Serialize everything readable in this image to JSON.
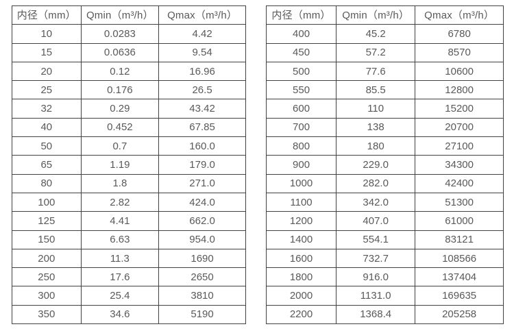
{
  "colors": {
    "background": "#ffffff",
    "table_border": "#404040",
    "table_text": "#595959"
  },
  "tables": [
    {
      "name": "small-diameter-flow-table",
      "headers": [
        "内径（mm）",
        "Qmin（m³/h）",
        "Qmax（m³/h）"
      ],
      "rows": [
        [
          "10",
          "0.0283",
          "4.42"
        ],
        [
          "15",
          "0.0636",
          "9.54"
        ],
        [
          "20",
          "0.12",
          "16.96"
        ],
        [
          "25",
          "0.176",
          "26.5"
        ],
        [
          "32",
          "0.29",
          "43.42"
        ],
        [
          "40",
          "0.452",
          "67.85"
        ],
        [
          "50",
          "0.7",
          "160.0"
        ],
        [
          "65",
          "1.19",
          "179.0"
        ],
        [
          "80",
          "1.8",
          "271.0"
        ],
        [
          "100",
          "2.82",
          "424.0"
        ],
        [
          "125",
          "4.41",
          "662.0"
        ],
        [
          "150",
          "6.63",
          "954.0"
        ],
        [
          "200",
          "11.3",
          "1690"
        ],
        [
          "250",
          "17.6",
          "2650"
        ],
        [
          "300",
          "25.4",
          "3810"
        ],
        [
          "350",
          "34.6",
          "5190"
        ]
      ]
    },
    {
      "name": "large-diameter-flow-table",
      "headers": [
        "内径（mm）",
        "Qmin（m³/h）",
        "Qmax（m³/h）"
      ],
      "rows": [
        [
          "400",
          "45.2",
          "6780"
        ],
        [
          "450",
          "57.2",
          "8570"
        ],
        [
          "500",
          "77.6",
          "10600"
        ],
        [
          "550",
          "85.5",
          "12800"
        ],
        [
          "600",
          "110",
          "15200"
        ],
        [
          "700",
          "138",
          "20700"
        ],
        [
          "800",
          "180",
          "27100"
        ],
        [
          "900",
          "229.0",
          "34300"
        ],
        [
          "1000",
          "282.0",
          "42400"
        ],
        [
          "1100",
          "342.0",
          "51300"
        ],
        [
          "1200",
          "407.0",
          "61000"
        ],
        [
          "1400",
          "554.1",
          "83121"
        ],
        [
          "1600",
          "732.7",
          "108566"
        ],
        [
          "1800",
          "916.0",
          "137404"
        ],
        [
          "2000",
          "1131.0",
          "169635"
        ],
        [
          "2200",
          "1368.4",
          "205258"
        ]
      ]
    }
  ],
  "chart_data": [
    {
      "type": "table",
      "title": "",
      "columns": [
        "内径（mm）",
        "Qmin（m³/h）",
        "Qmax（m³/h）"
      ],
      "rows": [
        [
          10,
          0.0283,
          4.42
        ],
        [
          15,
          0.0636,
          9.54
        ],
        [
          20,
          0.12,
          16.96
        ],
        [
          25,
          0.176,
          26.5
        ],
        [
          32,
          0.29,
          43.42
        ],
        [
          40,
          0.452,
          67.85
        ],
        [
          50,
          0.7,
          160.0
        ],
        [
          65,
          1.19,
          179.0
        ],
        [
          80,
          1.8,
          271.0
        ],
        [
          100,
          2.82,
          424.0
        ],
        [
          125,
          4.41,
          662.0
        ],
        [
          150,
          6.63,
          954.0
        ],
        [
          200,
          11.3,
          1690
        ],
        [
          250,
          17.6,
          2650
        ],
        [
          300,
          25.4,
          3810
        ],
        [
          350,
          34.6,
          5190
        ]
      ]
    },
    {
      "type": "table",
      "title": "",
      "columns": [
        "内径（mm）",
        "Qmin（m³/h）",
        "Qmax（m³/h）"
      ],
      "rows": [
        [
          400,
          45.2,
          6780
        ],
        [
          450,
          57.2,
          8570
        ],
        [
          500,
          77.6,
          10600
        ],
        [
          550,
          85.5,
          12800
        ],
        [
          600,
          110,
          15200
        ],
        [
          700,
          138,
          20700
        ],
        [
          800,
          180,
          27100
        ],
        [
          900,
          229.0,
          34300
        ],
        [
          1000,
          282.0,
          42400
        ],
        [
          1100,
          342.0,
          51300
        ],
        [
          1200,
          407.0,
          61000
        ],
        [
          1400,
          554.1,
          83121
        ],
        [
          1600,
          732.7,
          108566
        ],
        [
          1800,
          916.0,
          137404
        ],
        [
          2000,
          1131.0,
          169635
        ],
        [
          2200,
          1368.4,
          205258
        ]
      ]
    }
  ]
}
